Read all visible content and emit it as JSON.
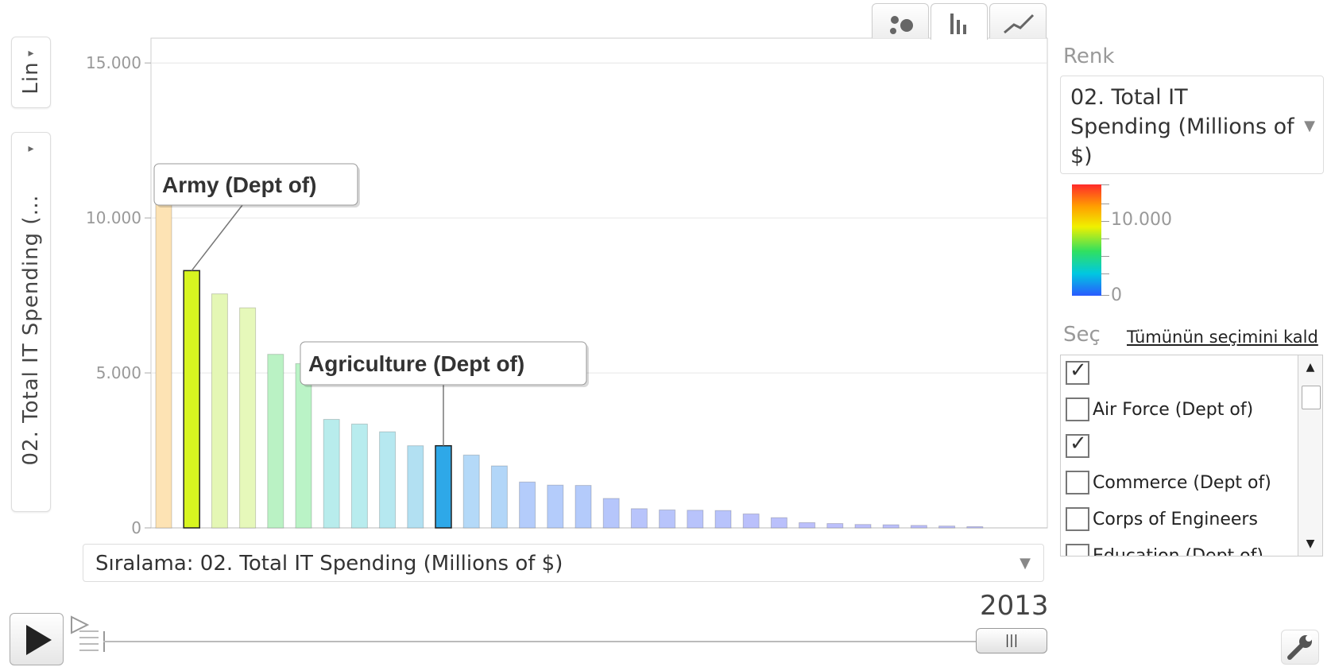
{
  "chart_data": {
    "type": "bar",
    "ylabel": "02. Total IT Spending (…",
    "ylim": [
      0,
      15800
    ],
    "yticks": [
      "0",
      "5.000",
      "10.000",
      "15.000"
    ],
    "ytick_values": [
      0,
      5000,
      10000,
      15000
    ],
    "grid": true,
    "values": [
      11000,
      8300,
      7550,
      7100,
      5600,
      5300,
      3500,
      3350,
      3100,
      2650,
      2650,
      2350,
      2000,
      1480,
      1380,
      1370,
      950,
      620,
      580,
      570,
      560,
      450,
      330,
      170,
      140,
      110,
      100,
      80,
      60,
      40
    ],
    "bar_colors": [
      "#fde3b4",
      "#d8f520",
      "#e4f7b5",
      "#e6f8ba",
      "#baf2c4",
      "#baf3c6",
      "#b8ecec",
      "#b8ecee",
      "#b6e8f0",
      "#b2e0f2",
      "#2ea8e8",
      "#b4d9f8",
      "#b2d6f8",
      "#b4ccfb",
      "#b4ccfb",
      "#b4cbfb",
      "#b6c6fb",
      "#b8c4fb",
      "#b8c4fb",
      "#b8c3fb",
      "#b8c3fb",
      "#bac0fb",
      "#bac0fb",
      "#bcc0fb",
      "#bcc0fb",
      "#bcc0fb",
      "#bcc0fb",
      "#bcbffb",
      "#bcbffb",
      "#bcbffb"
    ],
    "highlighted": [
      {
        "index": 1,
        "label": "Army (Dept of)"
      },
      {
        "index": 10,
        "label": "Agriculture (Dept of)"
      }
    ]
  },
  "y_axis_selector": {
    "label": "02. Total IT Spending (…",
    "scale_label": "Lin"
  },
  "chart_tabs": [
    {
      "name": "bubble-chart-icon",
      "active": false
    },
    {
      "name": "bar-chart-icon",
      "active": true
    },
    {
      "name": "line-chart-icon",
      "active": false
    }
  ],
  "sort": {
    "label": "Sıralama: 02. Total IT Spending (Millions of $)"
  },
  "color_panel": {
    "title": "Renk",
    "selected": "02. Total IT Spending (Millions of $)",
    "legend_max": "10.000",
    "legend_min": "0"
  },
  "select_panel": {
    "title": "Seç",
    "unselect_all": "Tümünün seçimini kald",
    "items": [
      {
        "label": "",
        "checked": true
      },
      {
        "label": "Air Force (Dept of)",
        "checked": false
      },
      {
        "label": "",
        "checked": true
      },
      {
        "label": "Commerce (Dept of)",
        "checked": false
      },
      {
        "label": "Corps of Engineers",
        "checked": false
      },
      {
        "label": "Education (Dept of)",
        "checked": false
      }
    ]
  },
  "timeline": {
    "year": "2013"
  },
  "icons": {
    "play": "play-icon",
    "speed": "speed-control-icon",
    "wrench": "wrench-icon"
  }
}
